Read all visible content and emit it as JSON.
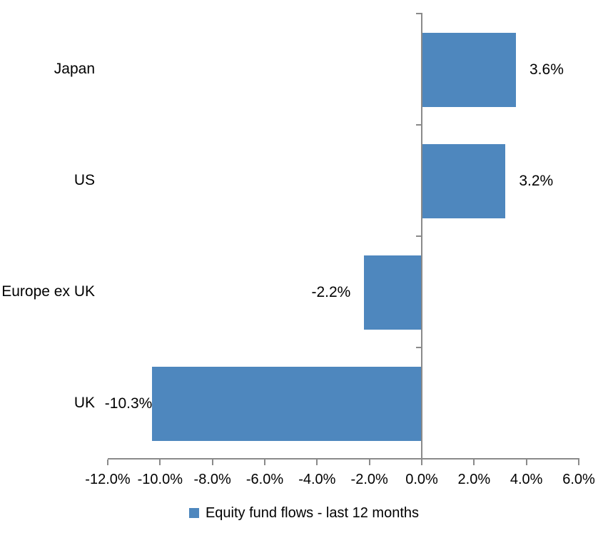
{
  "chart_data": {
    "type": "bar",
    "orientation": "horizontal",
    "title": "",
    "xlabel": "",
    "ylabel": "",
    "categories": [
      "Japan",
      "US",
      "Europe ex UK",
      "UK"
    ],
    "series": [
      {
        "name": "Equity fund flows - last 12 months",
        "values": [
          3.6,
          3.2,
          -2.2,
          -10.3
        ],
        "data_labels": [
          "3.6%",
          "3.2%",
          "-2.2%",
          "-10.3%"
        ],
        "color": "#4E87BE"
      }
    ],
    "xlim": [
      -12,
      6
    ],
    "x_ticks": [
      -12,
      -10,
      -8,
      -6,
      -4,
      -2,
      0,
      2,
      4,
      6
    ],
    "x_tick_labels": [
      "-12.0%",
      "-10.0%",
      "-8.0%",
      "-6.0%",
      "-4.0%",
      "-2.0%",
      "0.0%",
      "2.0%",
      "4.0%",
      "6.0%"
    ],
    "grid": false,
    "legend": {
      "position": "bottom",
      "label": "Equity fund flows - last 12 months",
      "marker_color": "#4E87BE"
    },
    "colors": {
      "bar": "#4E87BE",
      "axis": "#8A8A8A",
      "text": "#000000",
      "background": "#FFFFFF"
    }
  }
}
